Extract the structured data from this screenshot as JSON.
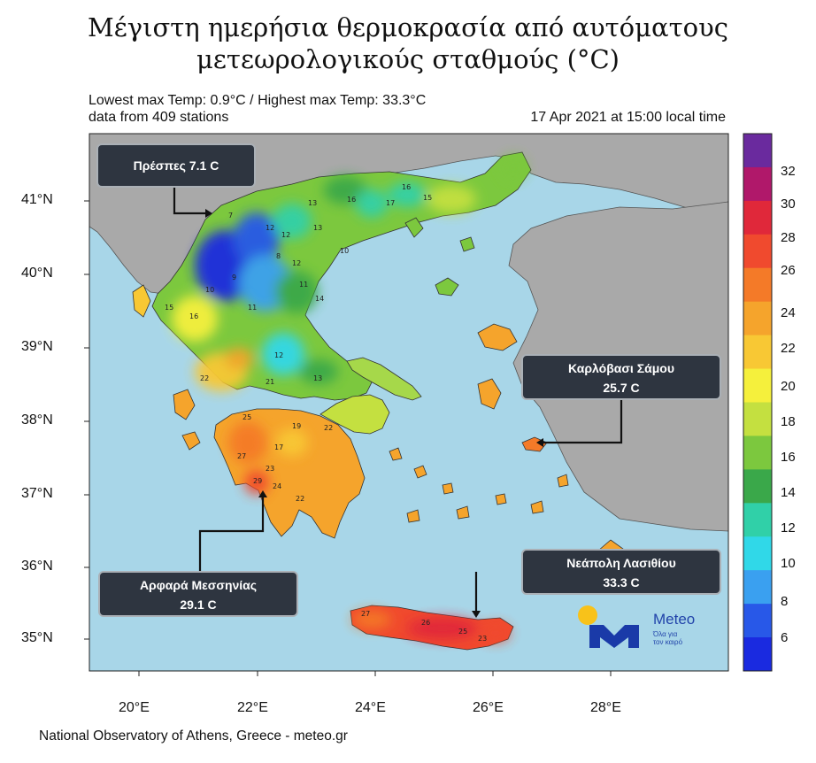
{
  "title_line1": "Μέγιστη ημερήσια θερμοκρασία από αυτόματους",
  "title_line2": "μετεωρολογικούς σταθμούς (°C)",
  "info": {
    "temp_range": "Lowest max Temp: 0.9°C / Highest max Temp: 33.3°C",
    "stations": "data from 409 stations",
    "datetime": "17 Apr 2021 at 15:00 local time"
  },
  "axes": {
    "longitudes": [
      "20°E",
      "22°E",
      "24°E",
      "26°E",
      "28°E"
    ],
    "latitudes": [
      "41°N",
      "40°N",
      "39°N",
      "38°N",
      "37°N",
      "36°N",
      "35°N"
    ]
  },
  "colorbar": {
    "labels": [
      "32",
      "30",
      "28",
      "26",
      "24",
      "22",
      "20",
      "18",
      "16",
      "14",
      "12",
      "10",
      "8",
      "6"
    ],
    "colors": [
      "#6a2a9e",
      "#b0186a",
      "#e0283a",
      "#f04a2e",
      "#f47a28",
      "#f5a42c",
      "#f8c834",
      "#f5f03c",
      "#c4e040",
      "#7cc83e",
      "#3aa84a",
      "#30d0a8",
      "#30d8e8",
      "#3aa0f0",
      "#2858e8",
      "#1a2ae0"
    ]
  },
  "callouts": {
    "prespes": "Πρέσπες  7.1 C",
    "karlovasi_name": "Καρλόβασι Σάμου",
    "karlovasi_value": "25.7 C",
    "neapoli_name": "Νεάπολη Λασιθίου",
    "neapoli_value": "33.3 C",
    "arfara_name": "Αρφαρά Μεσσηνίας",
    "arfara_value": "29.1 C"
  },
  "station_labels": [
    "7",
    "12",
    "13",
    "16",
    "10",
    "16",
    "17",
    "15",
    "12",
    "13",
    "12",
    "8",
    "9",
    "10",
    "15",
    "16",
    "11",
    "11",
    "14",
    "12",
    "22",
    "21",
    "13",
    "25",
    "19",
    "17",
    "27",
    "23",
    "24",
    "29",
    "22",
    "27",
    "26",
    "25",
    "23",
    "22"
  ],
  "logo": {
    "name": "Meteo",
    "tagline1": "Όλα για",
    "tagline2": "τον καιρό"
  },
  "footer": "National Observatory of Athens, Greece - meteo.gr"
}
